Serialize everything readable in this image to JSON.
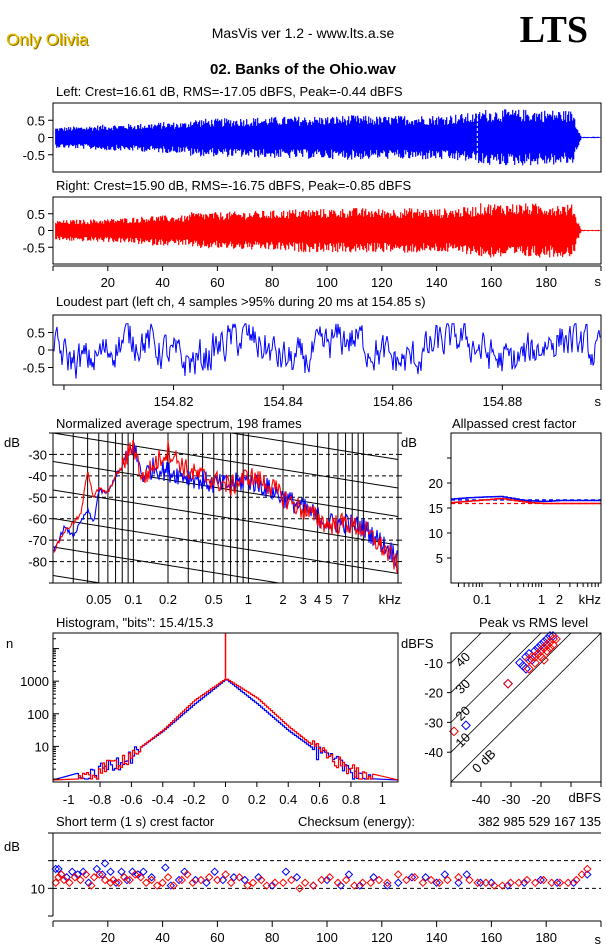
{
  "header": {
    "artist": "Only Olivia",
    "app_title": "MasVis ver 1.2 - www.lts.a.se",
    "logo": "LTS",
    "file_title": "02. Banks of the Ohio.wav"
  },
  "colors": {
    "left": "#0000ff",
    "right": "#ff0000",
    "frame": "#000000",
    "artist": "#e8c000"
  },
  "chart_data": [
    {
      "id": "left-waveform",
      "type": "area",
      "title": "Left: Crest=16.61 dB, RMS=-17.05 dBFS, Peak=-0.44 dBFS",
      "series": [
        {
          "name": "left",
          "color": "#0000ff",
          "envelope_time_s": [
            1,
            10,
            20,
            30,
            35,
            40,
            49,
            50,
            60,
            70,
            80,
            90,
            100,
            110,
            120,
            130,
            140,
            150,
            155,
            156,
            170,
            185,
            190,
            191,
            193,
            200
          ],
          "envelope_amp": [
            0.3,
            0.33,
            0.38,
            0.4,
            0.42,
            0.45,
            0.45,
            0.55,
            0.55,
            0.58,
            0.6,
            0.62,
            0.62,
            0.65,
            0.62,
            0.65,
            0.65,
            0.7,
            0.72,
            0.82,
            0.82,
            0.8,
            0.78,
            0.4,
            0.02,
            0.02
          ]
        }
      ],
      "ylim": [
        -1,
        1
      ],
      "yticks": [
        "0.5",
        "0",
        "-0.5"
      ],
      "xlim": [
        0,
        200
      ],
      "marker_s": 154.85
    },
    {
      "id": "right-waveform",
      "type": "area",
      "title": "Right: Crest=15.90 dB, RMS=-16.75 dBFS, Peak=-0.85 dBFS",
      "series": [
        {
          "name": "right",
          "color": "#ff0000",
          "envelope_time_s": [
            1,
            10,
            20,
            30,
            35,
            40,
            49,
            50,
            60,
            70,
            80,
            90,
            100,
            110,
            120,
            130,
            140,
            150,
            155,
            156,
            170,
            185,
            190,
            191,
            193,
            200
          ],
          "envelope_amp": [
            0.3,
            0.33,
            0.35,
            0.4,
            0.45,
            0.45,
            0.45,
            0.55,
            0.55,
            0.58,
            0.6,
            0.65,
            0.65,
            0.68,
            0.65,
            0.68,
            0.65,
            0.7,
            0.75,
            0.82,
            0.82,
            0.8,
            0.78,
            0.4,
            0.02,
            0.02
          ]
        }
      ],
      "ylim": [
        -1,
        1
      ],
      "yticks": [
        "0.5",
        "0",
        "-0.5"
      ],
      "xlim": [
        0,
        200
      ],
      "xticks": [
        "20",
        "40",
        "60",
        "80",
        "100",
        "120",
        "140",
        "160",
        "180"
      ],
      "xunit": "s"
    },
    {
      "id": "loudest-part",
      "type": "line",
      "title": "Loudest part (left  ch, 4 samples >95% during 20 ms at 154.85 s)",
      "ylim": [
        -1,
        1
      ],
      "yticks": [
        "0.5",
        "0",
        "-0.5"
      ],
      "xlim": [
        154.798,
        154.898
      ],
      "xticks": [
        "154.82",
        "154.84",
        "154.86",
        "154.88"
      ],
      "xunit": "s",
      "series": [
        {
          "name": "left",
          "color": "#0000ff"
        }
      ]
    },
    {
      "id": "average-spectrum",
      "type": "line",
      "title": "Normalized average spectrum, 198 frames",
      "ylabel": "dB",
      "ylim": [
        -90,
        -20
      ],
      "yticks": [
        "-30",
        "-40",
        "-50",
        "-60",
        "-70",
        "-80"
      ],
      "xscale": "log",
      "xlim_khz": [
        0.02,
        20
      ],
      "xticks": [
        "0.05",
        "0.1",
        "0.2",
        "0.5",
        "1",
        "2",
        "3",
        "4",
        "5",
        "7"
      ],
      "xunit": "kHz",
      "series": [
        {
          "name": "left",
          "color": "#0000ff",
          "freq_khz": [
            0.02,
            0.025,
            0.03,
            0.04,
            0.045,
            0.05,
            0.06,
            0.07,
            0.08,
            0.1,
            0.12,
            0.15,
            0.2,
            0.3,
            0.5,
            0.7,
            1,
            1.5,
            2,
            3,
            5,
            7,
            10,
            15,
            20
          ],
          "db": [
            -76,
            -64,
            -68,
            -56,
            -62,
            -47,
            -48,
            -40,
            -36,
            -26,
            -40,
            -36,
            -38,
            -40,
            -44,
            -44,
            -42,
            -46,
            -50,
            -55,
            -62,
            -62,
            -64,
            -72,
            -78
          ]
        },
        {
          "name": "right",
          "color": "#ff0000",
          "freq_khz": [
            0.02,
            0.025,
            0.03,
            0.035,
            0.04,
            0.045,
            0.05,
            0.06,
            0.07,
            0.08,
            0.1,
            0.12,
            0.15,
            0.2,
            0.3,
            0.5,
            0.7,
            1,
            1.5,
            2,
            3,
            5,
            7,
            10,
            15,
            20
          ],
          "db": [
            -76,
            -66,
            -62,
            -58,
            -37,
            -50,
            -46,
            -48,
            -40,
            -36,
            -25,
            -42,
            -35,
            -28,
            -38,
            -42,
            -45,
            -40,
            -44,
            -50,
            -56,
            -63,
            -62,
            -65,
            -74,
            -82
          ]
        }
      ]
    },
    {
      "id": "allpassed-crest",
      "type": "line",
      "title": "Allpassed crest factor",
      "ylabel": "dB",
      "ylim": [
        0,
        30
      ],
      "yticks": [
        "20",
        "15",
        "10",
        "5"
      ],
      "xscale": "log",
      "xlim_khz": [
        0.03,
        10
      ],
      "xticks": [
        "0.1",
        "1",
        "2"
      ],
      "xunit": "kHz",
      "series": [
        {
          "name": "left",
          "color": "#0000ff",
          "freq_khz": [
            0.03,
            0.05,
            0.1,
            0.2,
            0.5,
            1,
            2,
            10
          ],
          "db": [
            16.8,
            17.0,
            17.2,
            17.3,
            16.5,
            16.3,
            16.5,
            16.5
          ]
        },
        {
          "name": "right",
          "color": "#ff0000",
          "freq_khz": [
            0.03,
            0.05,
            0.1,
            0.2,
            0.5,
            1,
            2,
            10
          ],
          "db": [
            16.1,
            16.3,
            16.6,
            16.9,
            16.2,
            15.9,
            15.9,
            15.9
          ]
        }
      ],
      "reference_lines": [
        {
          "name": "left-overall",
          "color": "#0000ff",
          "db": 16.61
        },
        {
          "name": "right-overall",
          "color": "#ff0000",
          "db": 15.9
        }
      ]
    },
    {
      "id": "histogram",
      "type": "line",
      "title": "Histogram, \"bits\": 15.4/15.3",
      "ylabel": "n",
      "yscale": "log",
      "ylim": [
        1,
        30000
      ],
      "yticks": [
        "1000",
        "100",
        "10"
      ],
      "xlim": [
        -1.1,
        1.1
      ],
      "xticks": [
        "-1",
        "-0.8",
        "-0.6",
        "-0.4",
        "-0.2",
        "0",
        "0.2",
        "0.4",
        "0.6",
        "0.8",
        "1"
      ],
      "series": [
        {
          "name": "left",
          "color": "#0000ff",
          "x": [
            -0.9,
            -0.8,
            -0.6,
            -0.4,
            -0.2,
            0,
            0.2,
            0.4,
            0.6,
            0.8,
            0.9
          ],
          "n": [
            1,
            2,
            6,
            30,
            200,
            1150,
            200,
            30,
            6,
            2,
            1
          ]
        },
        {
          "name": "right",
          "color": "#ff0000",
          "x": [
            -0.9,
            -0.8,
            -0.6,
            -0.4,
            -0.2,
            0,
            0.2,
            0.4,
            0.6,
            0.8,
            0.9
          ],
          "n": [
            1,
            2,
            6,
            32,
            260,
            1200,
            300,
            40,
            7,
            2,
            1
          ]
        }
      ],
      "spike_at_zero": 30000
    },
    {
      "id": "peak-vs-rms",
      "type": "scatter",
      "title": "Peak vs RMS level",
      "ylabel": "dBFS",
      "xlabel": "dBFS",
      "xlim": [
        -50,
        0
      ],
      "ylim": [
        -50,
        0
      ],
      "xticks": [
        "-40",
        "-30",
        "-20"
      ],
      "yticks": [
        "-10",
        "-20",
        "-30",
        "-40"
      ],
      "crest_lines": [
        "0 dB",
        "10",
        "20",
        "30",
        "40"
      ],
      "series": [
        {
          "name": "left",
          "color": "#0000ff",
          "points": [
            [
              -45,
              -31
            ],
            [
              -31,
              -17
            ],
            [
              -27,
              -10
            ],
            [
              -26,
              -11
            ],
            [
              -25,
              -8
            ],
            [
              -24,
              -7
            ],
            [
              -22,
              -6
            ],
            [
              -21,
              -5
            ],
            [
              -20,
              -4
            ],
            [
              -19,
              -3
            ],
            [
              -18,
              -2
            ],
            [
              -17,
              -1
            ],
            [
              -16,
              -1
            ],
            [
              -23,
              -9
            ],
            [
              -25,
              -12
            ],
            [
              -18,
              -4
            ],
            [
              -19,
              -5
            ]
          ]
        },
        {
          "name": "right",
          "color": "#ff0000",
          "points": [
            [
              -49,
              -33
            ],
            [
              -31,
              -17
            ],
            [
              -24,
              -12
            ],
            [
              -24,
              -9
            ],
            [
              -23,
              -8
            ],
            [
              -22,
              -8
            ],
            [
              -21,
              -7
            ],
            [
              -20,
              -6
            ],
            [
              -19,
              -5
            ],
            [
              -18,
              -4
            ],
            [
              -17,
              -3
            ],
            [
              -16,
              -2
            ],
            [
              -15,
              -2
            ],
            [
              -22,
              -10
            ],
            [
              -20,
              -8
            ],
            [
              -18,
              -6
            ],
            [
              -17,
              -5
            ],
            [
              -16,
              -4
            ],
            [
              -19,
              -9
            ]
          ]
        }
      ]
    },
    {
      "id": "short-term-crest",
      "type": "scatter",
      "title": "Short term (1 s) crest factor",
      "checksum_label": "Checksum (energy):",
      "checksum_value": "382 985 529 167 135",
      "ylabel": "dB",
      "ylim": [
        0,
        30
      ],
      "yticks": [
        "10"
      ],
      "dashed_lines_db": [
        10,
        20
      ],
      "xlim": [
        0,
        200
      ],
      "xticks": [
        "20",
        "40",
        "60",
        "80",
        "100",
        "120",
        "140",
        "160",
        "180"
      ],
      "xunit": "s",
      "series": [
        {
          "name": "left",
          "color": "#0000ff",
          "time_s": [
            1,
            2,
            3,
            5,
            7,
            9,
            11,
            13,
            16,
            18,
            19,
            21,
            23,
            25,
            27,
            29,
            31,
            33,
            36,
            41,
            43,
            46,
            48,
            52,
            56,
            59,
            62,
            66,
            70,
            75,
            80,
            85,
            89,
            95,
            100,
            105,
            108,
            112,
            117,
            122,
            126,
            131,
            136,
            140,
            143,
            148,
            151,
            156,
            160,
            166,
            172,
            178,
            184,
            190,
            195
          ],
          "db": [
            17,
            17,
            15,
            14,
            16,
            15,
            16,
            12,
            17,
            15,
            19,
            16,
            12,
            16,
            13,
            16,
            15,
            16,
            14,
            17.5,
            11,
            13,
            16,
            13,
            12,
            16,
            13,
            14,
            13,
            14,
            11,
            16,
            14,
            11,
            13,
            11,
            15,
            11,
            14,
            11,
            12,
            14,
            14,
            12,
            15,
            12,
            15,
            12,
            12,
            11,
            12,
            13,
            12,
            12,
            15
          ]
        },
        {
          "name": "right",
          "color": "#ff0000",
          "time_s": [
            1,
            2,
            3,
            4,
            6,
            8,
            10,
            12,
            14,
            15,
            17,
            19,
            21,
            22,
            24,
            26,
            28,
            30,
            32,
            34,
            36,
            38,
            40,
            42,
            44,
            47,
            49,
            51,
            54,
            57,
            60,
            63,
            65,
            68,
            71,
            73,
            76,
            78,
            81,
            84,
            87,
            90,
            92,
            95,
            98,
            101,
            104,
            107,
            110,
            113,
            116,
            119,
            122,
            126,
            129,
            132,
            135,
            138,
            141,
            144,
            148,
            152,
            155,
            158,
            161,
            164,
            167,
            170,
            173,
            176,
            179,
            182,
            185,
            188,
            191,
            193,
            195
          ],
          "db": [
            12,
            14,
            15,
            13,
            12,
            14,
            13,
            15,
            11,
            14,
            15,
            13,
            12,
            13,
            12,
            14,
            13,
            15,
            14,
            12,
            13,
            11,
            12,
            14,
            11,
            13,
            15,
            12,
            13,
            14,
            13,
            15,
            12,
            14,
            11,
            12,
            13,
            11,
            12,
            12,
            13,
            10,
            12,
            11,
            13,
            14,
            12,
            13,
            11,
            12,
            12,
            13,
            12,
            15,
            13,
            14,
            12,
            13,
            12,
            13,
            14,
            13,
            12,
            12,
            11,
            11,
            12,
            12,
            13,
            12,
            13,
            12,
            12,
            12,
            13,
            15,
            17
          ]
        }
      ]
    }
  ]
}
